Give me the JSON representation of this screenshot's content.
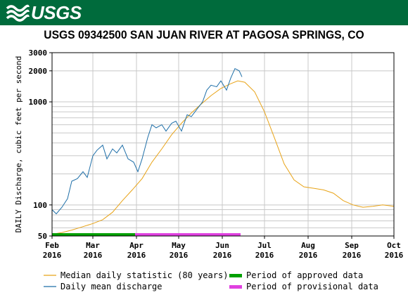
{
  "header": {
    "logo_text": "USGS",
    "logo_icon": "usgs-wave-logo-icon",
    "brand_color": "#006b3c"
  },
  "chart_data": {
    "type": "line",
    "title": "USGS 09342500 SAN JUAN RIVER AT PAGOSA SPRINGS, CO",
    "ylabel": "DAILY Discharge, cubic feet per second",
    "xlabel": "",
    "yscale": "log",
    "ylim": [
      50,
      3000
    ],
    "xlim": [
      "2016-02-01",
      "2016-10-01"
    ],
    "yticks": [
      {
        "value": 50,
        "label": "50"
      },
      {
        "value": 100,
        "label": "100"
      },
      {
        "value": 1000,
        "label": "1000"
      },
      {
        "value": 2000,
        "label": "2000"
      },
      {
        "value": 3000,
        "label": "3000"
      }
    ],
    "xticks": [
      {
        "date": "2016-02-01",
        "line1": "Feb",
        "line2": "2016"
      },
      {
        "date": "2016-03-01",
        "line1": "Mar",
        "line2": "2016"
      },
      {
        "date": "2016-04-01",
        "line1": "Apr",
        "line2": "2016"
      },
      {
        "date": "2016-05-01",
        "line1": "May",
        "line2": "2016"
      },
      {
        "date": "2016-06-01",
        "line1": "Jun",
        "line2": "2016"
      },
      {
        "date": "2016-07-01",
        "line1": "Jul",
        "line2": "2016"
      },
      {
        "date": "2016-08-01",
        "line1": "Aug",
        "line2": "2016"
      },
      {
        "date": "2016-09-01",
        "line1": "Sep",
        "line2": "2016"
      },
      {
        "date": "2016-10-01",
        "line1": "Oct",
        "line2": "2016"
      }
    ],
    "grid": true,
    "legend_position": "bottom",
    "series": [
      {
        "name": "Median daily statistic (80 years)",
        "color": "#e8a317",
        "points": [
          [
            "2016-02-01",
            52
          ],
          [
            "2016-02-08",
            54
          ],
          [
            "2016-02-15",
            57
          ],
          [
            "2016-02-22",
            61
          ],
          [
            "2016-03-01",
            66
          ],
          [
            "2016-03-08",
            72
          ],
          [
            "2016-03-15",
            85
          ],
          [
            "2016-03-22",
            110
          ],
          [
            "2016-03-29",
            140
          ],
          [
            "2016-04-05",
            180
          ],
          [
            "2016-04-12",
            260
          ],
          [
            "2016-04-19",
            350
          ],
          [
            "2016-04-26",
            480
          ],
          [
            "2016-05-03",
            620
          ],
          [
            "2016-05-10",
            780
          ],
          [
            "2016-05-17",
            950
          ],
          [
            "2016-05-24",
            1150
          ],
          [
            "2016-05-31",
            1350
          ],
          [
            "2016-06-07",
            1500
          ],
          [
            "2016-06-12",
            1600
          ],
          [
            "2016-06-17",
            1550
          ],
          [
            "2016-06-24",
            1250
          ],
          [
            "2016-07-01",
            800
          ],
          [
            "2016-07-08",
            450
          ],
          [
            "2016-07-15",
            250
          ],
          [
            "2016-07-22",
            175
          ],
          [
            "2016-07-29",
            150
          ],
          [
            "2016-08-05",
            145
          ],
          [
            "2016-08-12",
            140
          ],
          [
            "2016-08-19",
            130
          ],
          [
            "2016-08-26",
            110
          ],
          [
            "2016-09-02",
            100
          ],
          [
            "2016-09-09",
            95
          ],
          [
            "2016-09-16",
            97
          ],
          [
            "2016-09-23",
            100
          ],
          [
            "2016-10-01",
            97
          ]
        ]
      },
      {
        "name": "Daily mean discharge",
        "color": "#1f6fa8",
        "points": [
          [
            "2016-02-01",
            90
          ],
          [
            "2016-02-04",
            82
          ],
          [
            "2016-02-08",
            95
          ],
          [
            "2016-02-12",
            115
          ],
          [
            "2016-02-15",
            170
          ],
          [
            "2016-02-19",
            180
          ],
          [
            "2016-02-23",
            210
          ],
          [
            "2016-02-26",
            185
          ],
          [
            "2016-03-01",
            300
          ],
          [
            "2016-03-04",
            340
          ],
          [
            "2016-03-08",
            380
          ],
          [
            "2016-03-11",
            280
          ],
          [
            "2016-03-15",
            350
          ],
          [
            "2016-03-18",
            320
          ],
          [
            "2016-03-22",
            380
          ],
          [
            "2016-03-26",
            280
          ],
          [
            "2016-03-30",
            260
          ],
          [
            "2016-04-02",
            210
          ],
          [
            "2016-04-05",
            280
          ],
          [
            "2016-04-09",
            450
          ],
          [
            "2016-04-12",
            600
          ],
          [
            "2016-04-15",
            560
          ],
          [
            "2016-04-19",
            600
          ],
          [
            "2016-04-22",
            520
          ],
          [
            "2016-04-26",
            620
          ],
          [
            "2016-04-29",
            650
          ],
          [
            "2016-05-03",
            520
          ],
          [
            "2016-05-07",
            750
          ],
          [
            "2016-05-10",
            720
          ],
          [
            "2016-05-14",
            850
          ],
          [
            "2016-05-18",
            1000
          ],
          [
            "2016-05-21",
            1300
          ],
          [
            "2016-05-24",
            1450
          ],
          [
            "2016-05-28",
            1400
          ],
          [
            "2016-05-31",
            1600
          ],
          [
            "2016-06-04",
            1300
          ],
          [
            "2016-06-07",
            1700
          ],
          [
            "2016-06-10",
            2100
          ],
          [
            "2016-06-13",
            2000
          ],
          [
            "2016-06-15",
            1750
          ]
        ]
      }
    ],
    "legend": [
      {
        "label": "Median daily statistic (80 years)",
        "color": "#e8a317",
        "kind": "line"
      },
      {
        "label": "Daily mean discharge",
        "color": "#1f6fa8",
        "kind": "line"
      },
      {
        "label": "Period of approved data",
        "color": "#00a000",
        "kind": "bar"
      },
      {
        "label": "Period of provisional data",
        "color": "#e040e0",
        "kind": "bar"
      }
    ],
    "periods": [
      {
        "name": "Period of approved data",
        "start": "2016-02-01",
        "end": "2016-03-31",
        "color": "#00a000"
      },
      {
        "name": "Period of provisional data",
        "start": "2016-03-31",
        "end": "2016-06-14",
        "color": "#e040e0"
      }
    ]
  }
}
